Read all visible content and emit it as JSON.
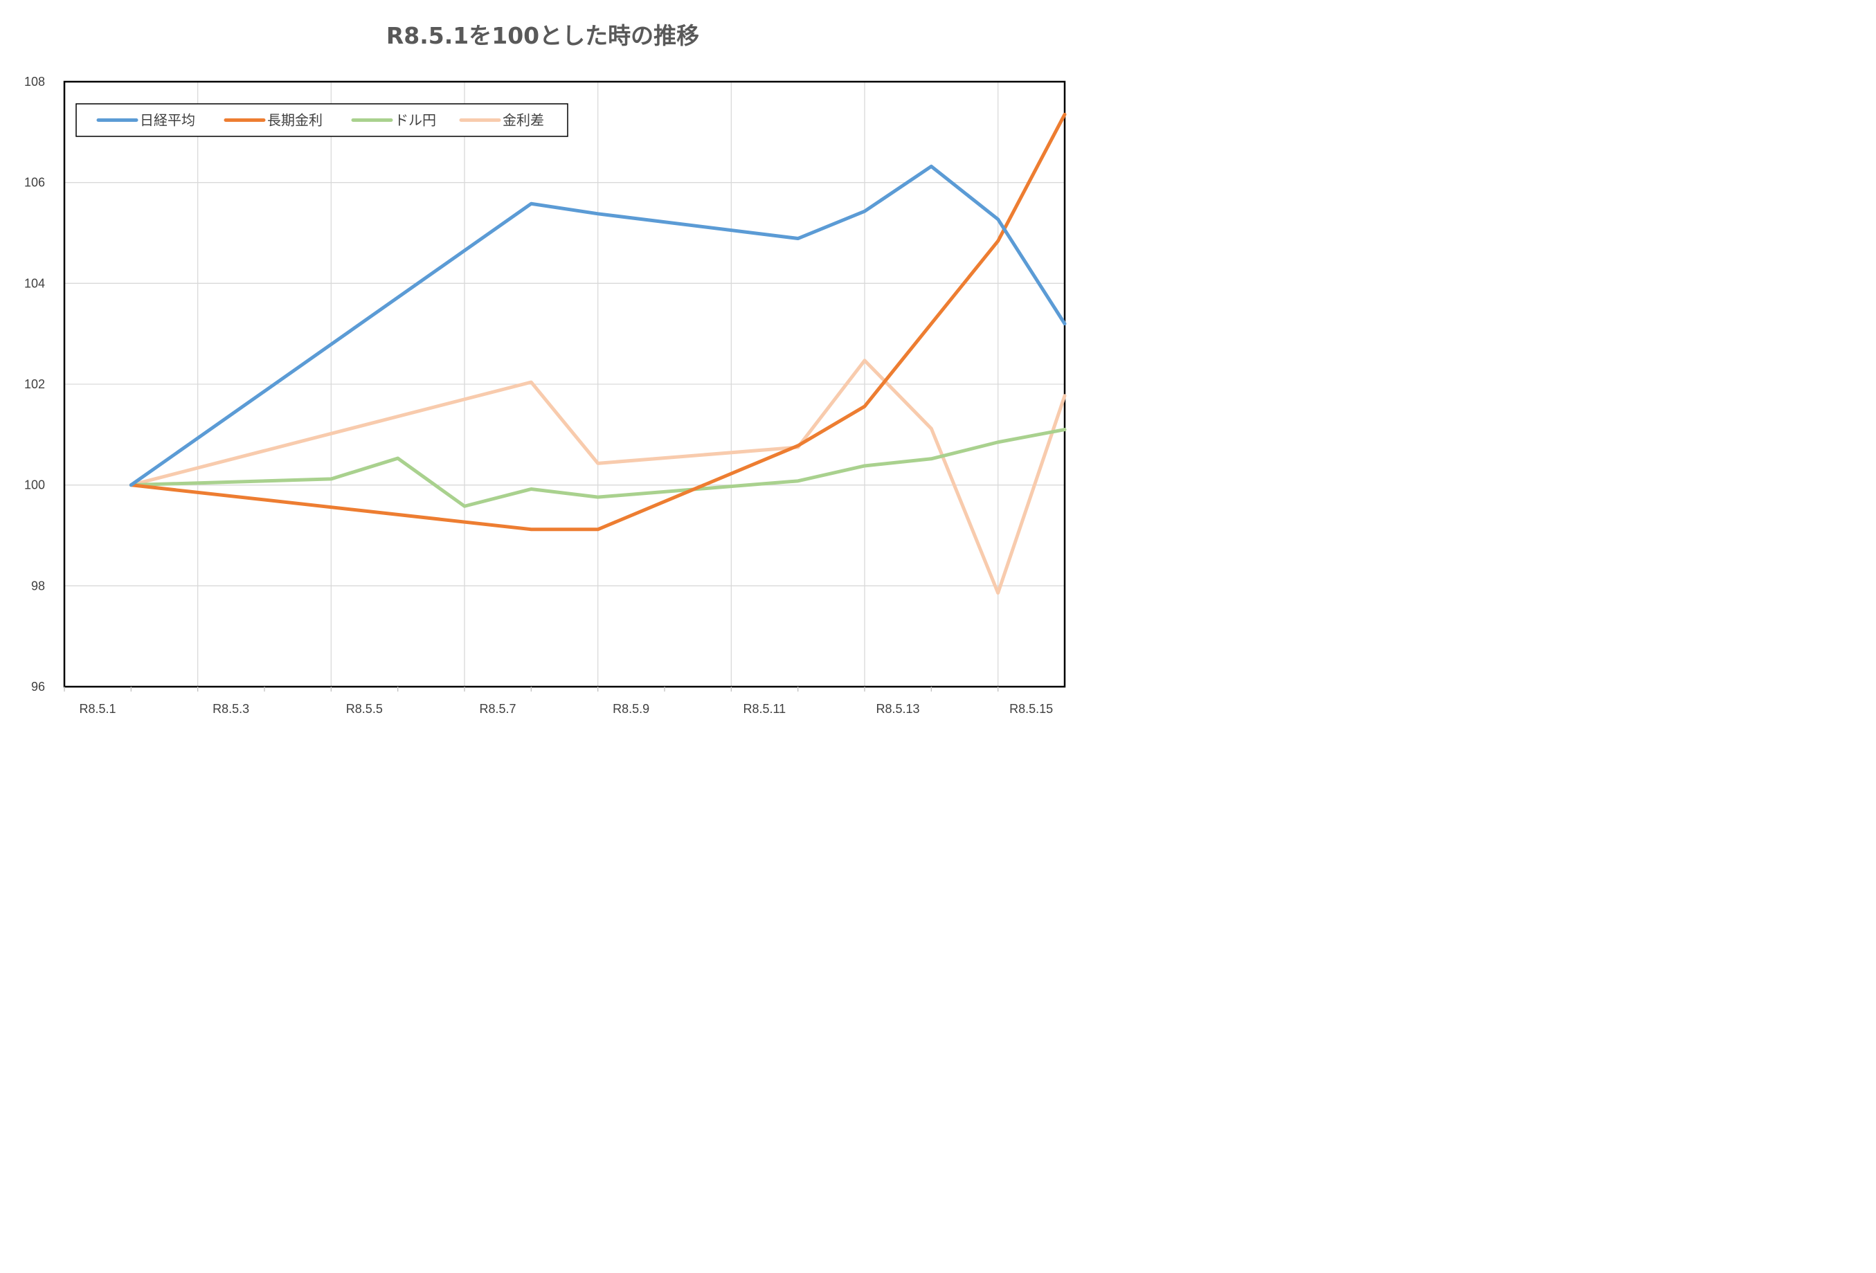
{
  "chart_data": {
    "type": "line",
    "title": "R8.5.1を100とした時の推移",
    "xlabel": "",
    "ylabel": "",
    "ylim": [
      96,
      108
    ],
    "yticks": [
      96,
      98,
      100,
      102,
      104,
      106,
      108
    ],
    "xlim": [
      1,
      15.5
    ],
    "xticks": [
      1,
      3,
      5,
      7,
      9,
      11,
      13,
      15
    ],
    "xtick_labels": [
      "R8.5.1",
      "R8.5.3",
      "R8.5.5",
      "R8.5.7",
      "R8.5.9",
      "R8.5.11",
      "R8.5.13",
      "R8.5.15"
    ],
    "grid": true,
    "legend_position": "top-left",
    "series": [
      {
        "name": "日経平均",
        "color": "#5B9BD5",
        "points": [
          [
            1.5,
            100
          ],
          [
            7.5,
            105.58
          ],
          [
            8.5,
            105.38
          ],
          [
            11.5,
            104.89
          ],
          [
            12.5,
            105.43
          ],
          [
            13.5,
            106.32
          ],
          [
            14.5,
            105.27
          ],
          [
            15.5,
            103.2
          ]
        ]
      },
      {
        "name": "長期金利",
        "color": "#ED7D31",
        "points": [
          [
            1.5,
            100
          ],
          [
            7.5,
            99.12
          ],
          [
            8.5,
            99.12
          ],
          [
            11.5,
            100.78
          ],
          [
            12.5,
            101.56
          ],
          [
            13.5,
            103.2
          ],
          [
            14.5,
            104.84
          ],
          [
            15.5,
            107.35
          ]
        ]
      },
      {
        "name": "ドル円",
        "color": "#A9D18E",
        "points": [
          [
            1.5,
            100
          ],
          [
            4.5,
            100.12
          ],
          [
            5.5,
            100.53
          ],
          [
            6.5,
            99.58
          ],
          [
            7.5,
            99.92
          ],
          [
            8.5,
            99.76
          ],
          [
            11.5,
            100.08
          ],
          [
            12.5,
            100.38
          ],
          [
            13.5,
            100.52
          ],
          [
            14.5,
            100.85
          ],
          [
            15.5,
            101.1
          ]
        ]
      },
      {
        "name": "金利差",
        "color": "#F8CBAD",
        "points": [
          [
            1.5,
            100
          ],
          [
            7.5,
            102.04
          ],
          [
            8.5,
            100.43
          ],
          [
            11.5,
            100.75
          ],
          [
            12.5,
            102.47
          ],
          [
            13.5,
            101.12
          ],
          [
            14.5,
            97.86
          ],
          [
            15.5,
            101.77
          ]
        ]
      }
    ]
  }
}
